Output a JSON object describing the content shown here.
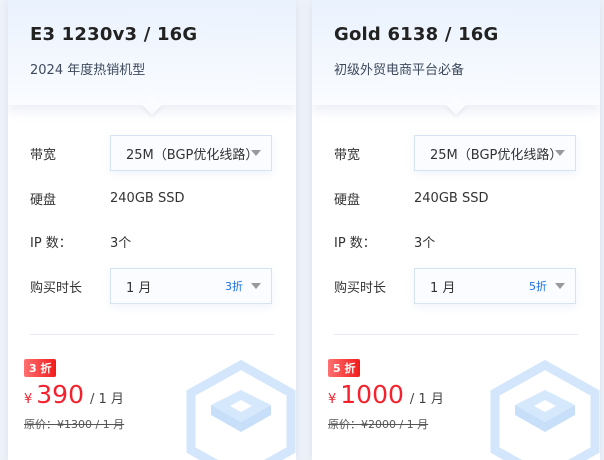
{
  "labels": {
    "bandwidth": "带宽",
    "disk": "硬盘",
    "ip": "IP 数：",
    "duration": "购买时长"
  },
  "cards": [
    {
      "title": "E3 1230v3 / 16G",
      "subtitle": "2024 年度热销机型",
      "bandwidth": "25M（BGP优化线路）",
      "disk": "240GB SSD",
      "ip": "3个",
      "duration": "1 月",
      "duration_discount": "3折",
      "badge": "3 折",
      "currency": "¥",
      "price": "390",
      "per": "/ 1 月",
      "original": "原价：¥1300 / 1 月"
    },
    {
      "title": "Gold 6138 / 16G",
      "subtitle": "初级外贸电商平台必备",
      "bandwidth": "25M（BGP优化线路）",
      "disk": "240GB SSD",
      "ip": "3个",
      "duration": "1 月",
      "duration_discount": "5折",
      "badge": "5 折",
      "currency": "¥",
      "price": "1000",
      "per": "/ 1 月",
      "original": "原价：¥2000 / 1 月"
    }
  ],
  "colors": {
    "accent": "#1a6fe8",
    "price": "#f5222d"
  }
}
